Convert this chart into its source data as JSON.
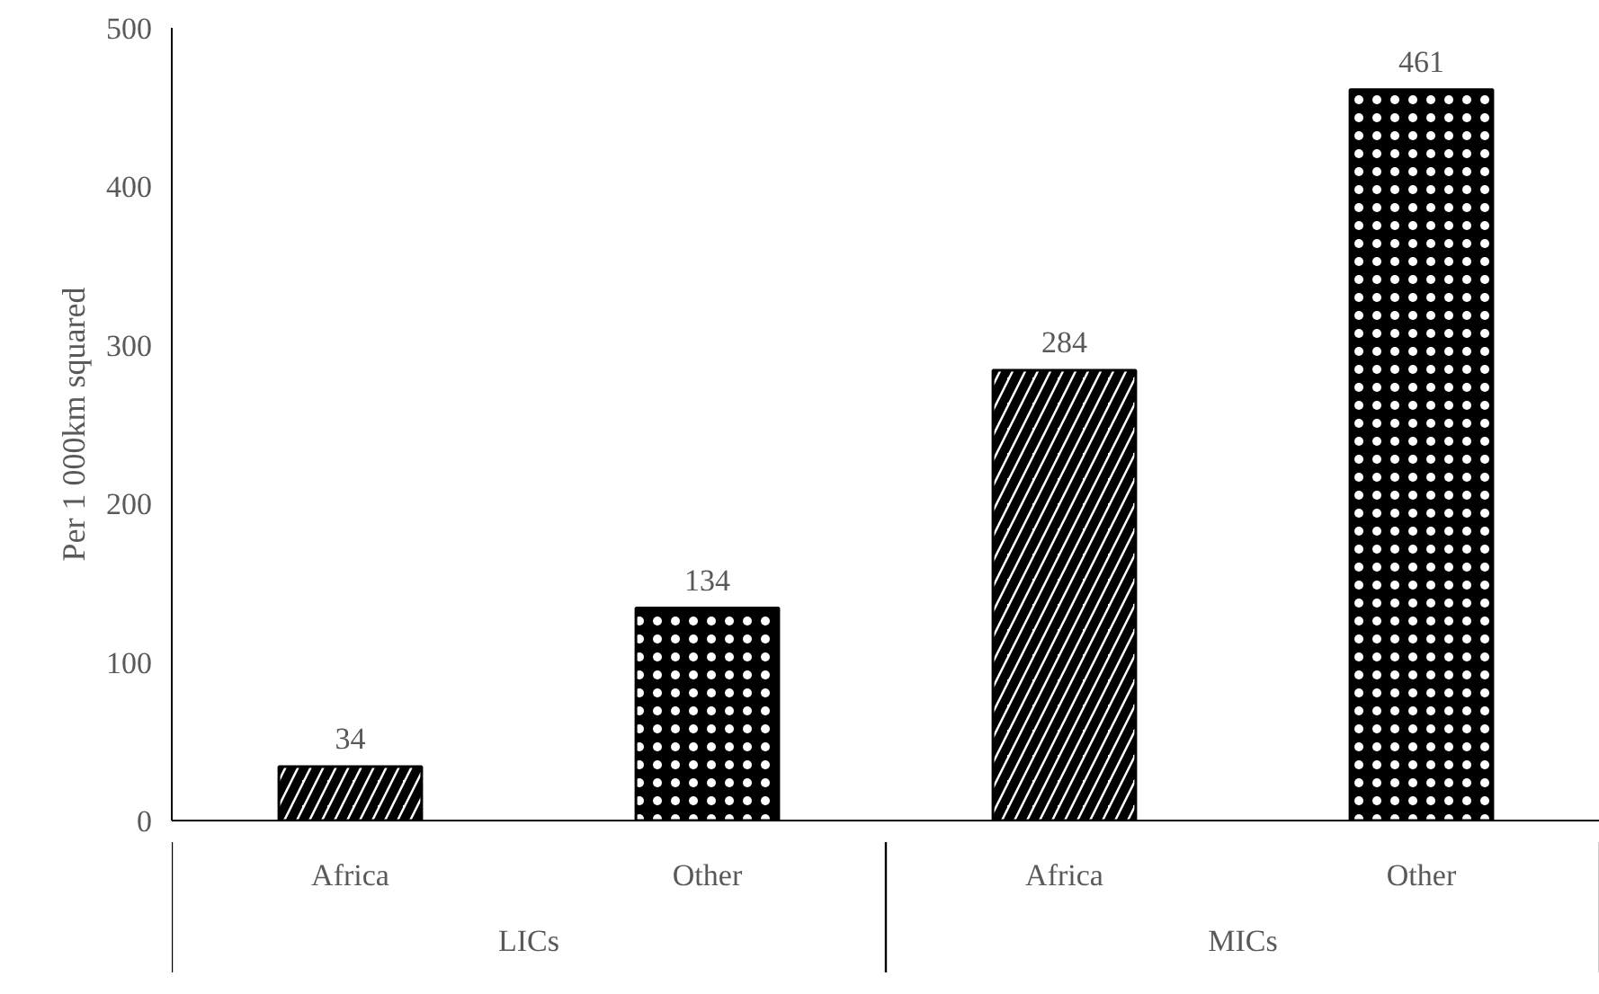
{
  "chart_data": {
    "type": "bar",
    "categories": [
      "Africa",
      "Other",
      "Africa",
      "Other"
    ],
    "values": [
      34,
      134,
      284,
      461
    ],
    "colors": [
      "#ffffff",
      "#000000",
      "#ffffff",
      "#000000"
    ],
    "ylabel": "Per 1 000km squared",
    "ylim": [
      0,
      500
    ],
    "yticks": [
      0,
      100,
      200,
      300,
      400,
      500
    ],
    "data_labels": true,
    "grid": false,
    "annotations": [
      "LICs",
      "MICs"
    ]
  }
}
